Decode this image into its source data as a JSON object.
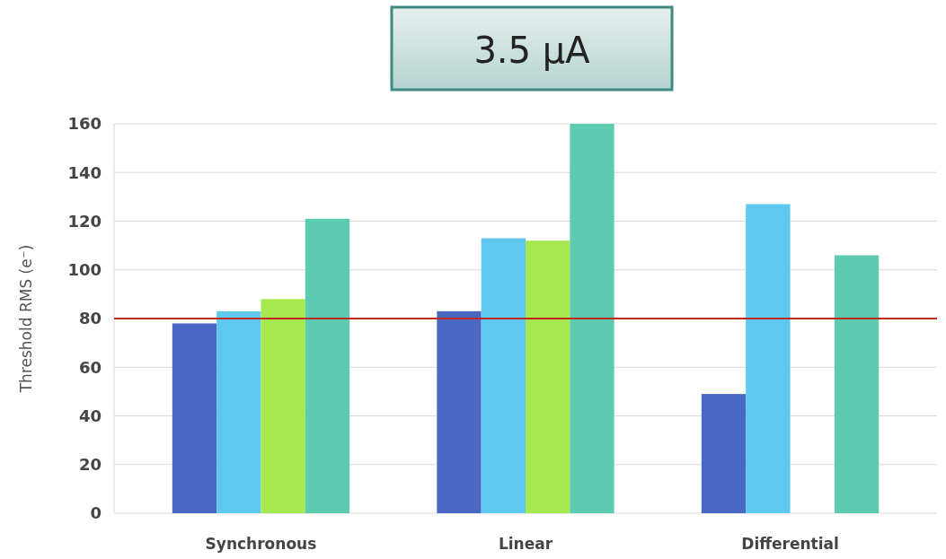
{
  "chart_data": {
    "type": "bar",
    "title": "3.5 μA",
    "ylabel": "Threshold RMS (e⁻)",
    "categories": [
      "Synchronous",
      "Linear",
      "Differential"
    ],
    "series": [
      {
        "color": "#4a67c4",
        "values": [
          78,
          83,
          49
        ]
      },
      {
        "color": "#5ec8ee",
        "values": [
          83,
          113,
          127
        ]
      },
      {
        "color": "#a6e850",
        "values": [
          88,
          112,
          null
        ]
      },
      {
        "color": "#5ccbb0",
        "values": [
          121,
          160,
          106
        ]
      }
    ],
    "ylim": [
      0,
      160
    ],
    "yticks": [
      0,
      20,
      40,
      60,
      80,
      100,
      120,
      140,
      160
    ],
    "grid": "y",
    "ref_lines": [
      {
        "axis": "y",
        "value": 80,
        "color": "#c0281c"
      }
    ]
  }
}
